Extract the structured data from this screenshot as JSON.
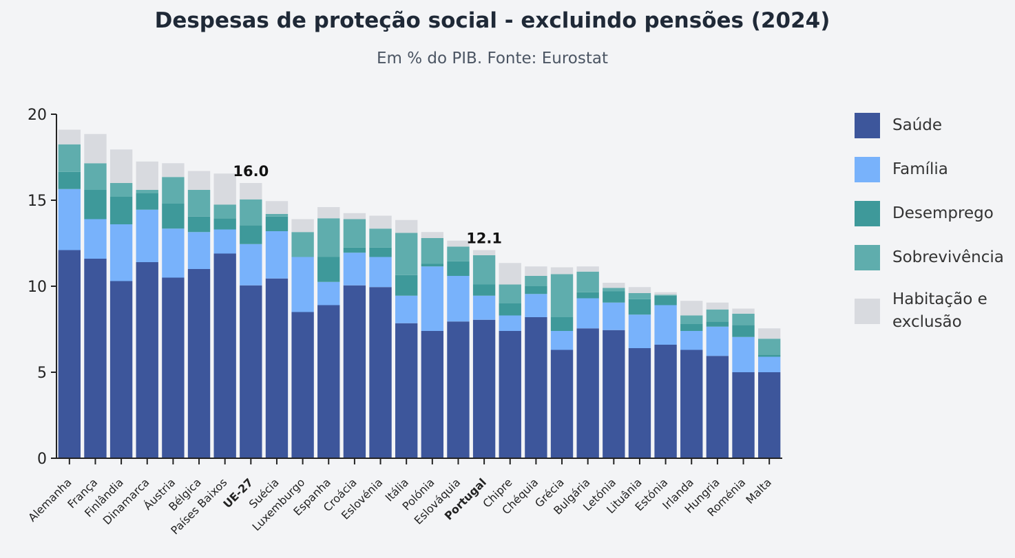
{
  "title": "Despesas de proteção social - excluindo pensões (2024)",
  "subtitle": "Em % do PIB. Fonte: Eurostat",
  "colors": {
    "saude": "#3d569b",
    "familia": "#78b2fb",
    "desemprego": "#3e999a",
    "sobrevivencia": "#5fadad",
    "habitacao": "#d8dadf",
    "axis": "#222222"
  },
  "chart_data": {
    "type": "bar",
    "stacked": true,
    "title": "Despesas de proteção social - excluindo pensões (2024)",
    "subtitle": "Em % do PIB. Fonte: Eurostat",
    "ylim": [
      0,
      20
    ],
    "yticks": [
      0,
      5,
      10,
      15,
      20
    ],
    "grid": false,
    "legend_position": "right",
    "categories": [
      "Alemanha",
      "França",
      "Finlândia",
      "Dinamarca",
      "Áustria",
      "Bélgica",
      "Países Baixos",
      "UE-27",
      "Suécia",
      "Luxemburgo",
      "Espanha",
      "Croácia",
      "Eslovénia",
      "Itália",
      "Polónia",
      "Eslováquia",
      "Portugal",
      "Chipre",
      "Chéquia",
      "Grécia",
      "Bulgária",
      "Letónia",
      "Lituânia",
      "Estónia",
      "Irlanda",
      "Hungria",
      "Roménia",
      "Malta"
    ],
    "highlighted_categories": [
      "UE-27",
      "Portugal"
    ],
    "series": [
      {
        "name": "Saúde",
        "color_key": "saude",
        "values": [
          12.1,
          11.6,
          10.3,
          11.4,
          10.5,
          11.0,
          11.9,
          10.05,
          10.45,
          8.5,
          8.9,
          10.05,
          9.95,
          7.85,
          7.4,
          7.95,
          8.05,
          7.4,
          8.2,
          6.3,
          7.55,
          7.45,
          6.4,
          6.6,
          6.3,
          5.95,
          5.0,
          5.0
        ]
      },
      {
        "name": "Família",
        "color_key": "familia",
        "values": [
          3.55,
          2.3,
          3.3,
          3.05,
          2.85,
          2.15,
          1.4,
          2.4,
          2.75,
          3.2,
          1.35,
          1.9,
          1.75,
          1.6,
          3.75,
          2.65,
          1.4,
          0.9,
          1.35,
          1.1,
          1.75,
          1.6,
          1.95,
          2.3,
          1.1,
          1.7,
          2.05,
          0.9
        ]
      },
      {
        "name": "Desemprego",
        "color_key": "desemprego",
        "values": [
          1.0,
          1.7,
          1.6,
          0.95,
          1.45,
          0.9,
          0.65,
          1.1,
          0.85,
          0.0,
          1.45,
          0.3,
          0.55,
          1.2,
          0.15,
          0.85,
          0.65,
          0.7,
          0.45,
          0.8,
          0.35,
          0.65,
          0.9,
          0.55,
          0.4,
          0.3,
          0.7,
          0.1
        ]
      },
      {
        "name": "Sobrevivência",
        "color_key": "sobrevivencia",
        "values": [
          1.6,
          1.55,
          0.8,
          0.2,
          1.55,
          1.55,
          0.8,
          1.5,
          0.15,
          1.45,
          2.25,
          1.65,
          1.1,
          2.45,
          1.5,
          0.85,
          1.7,
          1.1,
          0.6,
          2.5,
          1.2,
          0.2,
          0.35,
          0.05,
          0.5,
          0.7,
          0.65,
          0.95
        ]
      },
      {
        "name": "Habitação e exclusão",
        "color_key": "habitacao",
        "values": [
          0.85,
          1.7,
          1.95,
          1.65,
          0.8,
          1.1,
          1.8,
          0.95,
          0.75,
          0.75,
          0.65,
          0.35,
          0.75,
          0.75,
          0.35,
          0.35,
          0.3,
          1.25,
          0.55,
          0.4,
          0.3,
          0.3,
          0.35,
          0.15,
          0.85,
          0.4,
          0.3,
          0.6
        ]
      }
    ],
    "annotations": [
      {
        "category": "UE-27",
        "label": "16.0"
      },
      {
        "category": "Portugal",
        "label": "12.1"
      }
    ]
  },
  "legend": [
    {
      "label": "Saúde",
      "color_key": "saude"
    },
    {
      "label": "Família",
      "color_key": "familia"
    },
    {
      "label": "Desemprego",
      "color_key": "desemprego"
    },
    {
      "label": "Sobrevivência",
      "color_key": "sobrevivencia"
    },
    {
      "label": "Habitação e exclusão",
      "color_key": "habitacao"
    }
  ]
}
